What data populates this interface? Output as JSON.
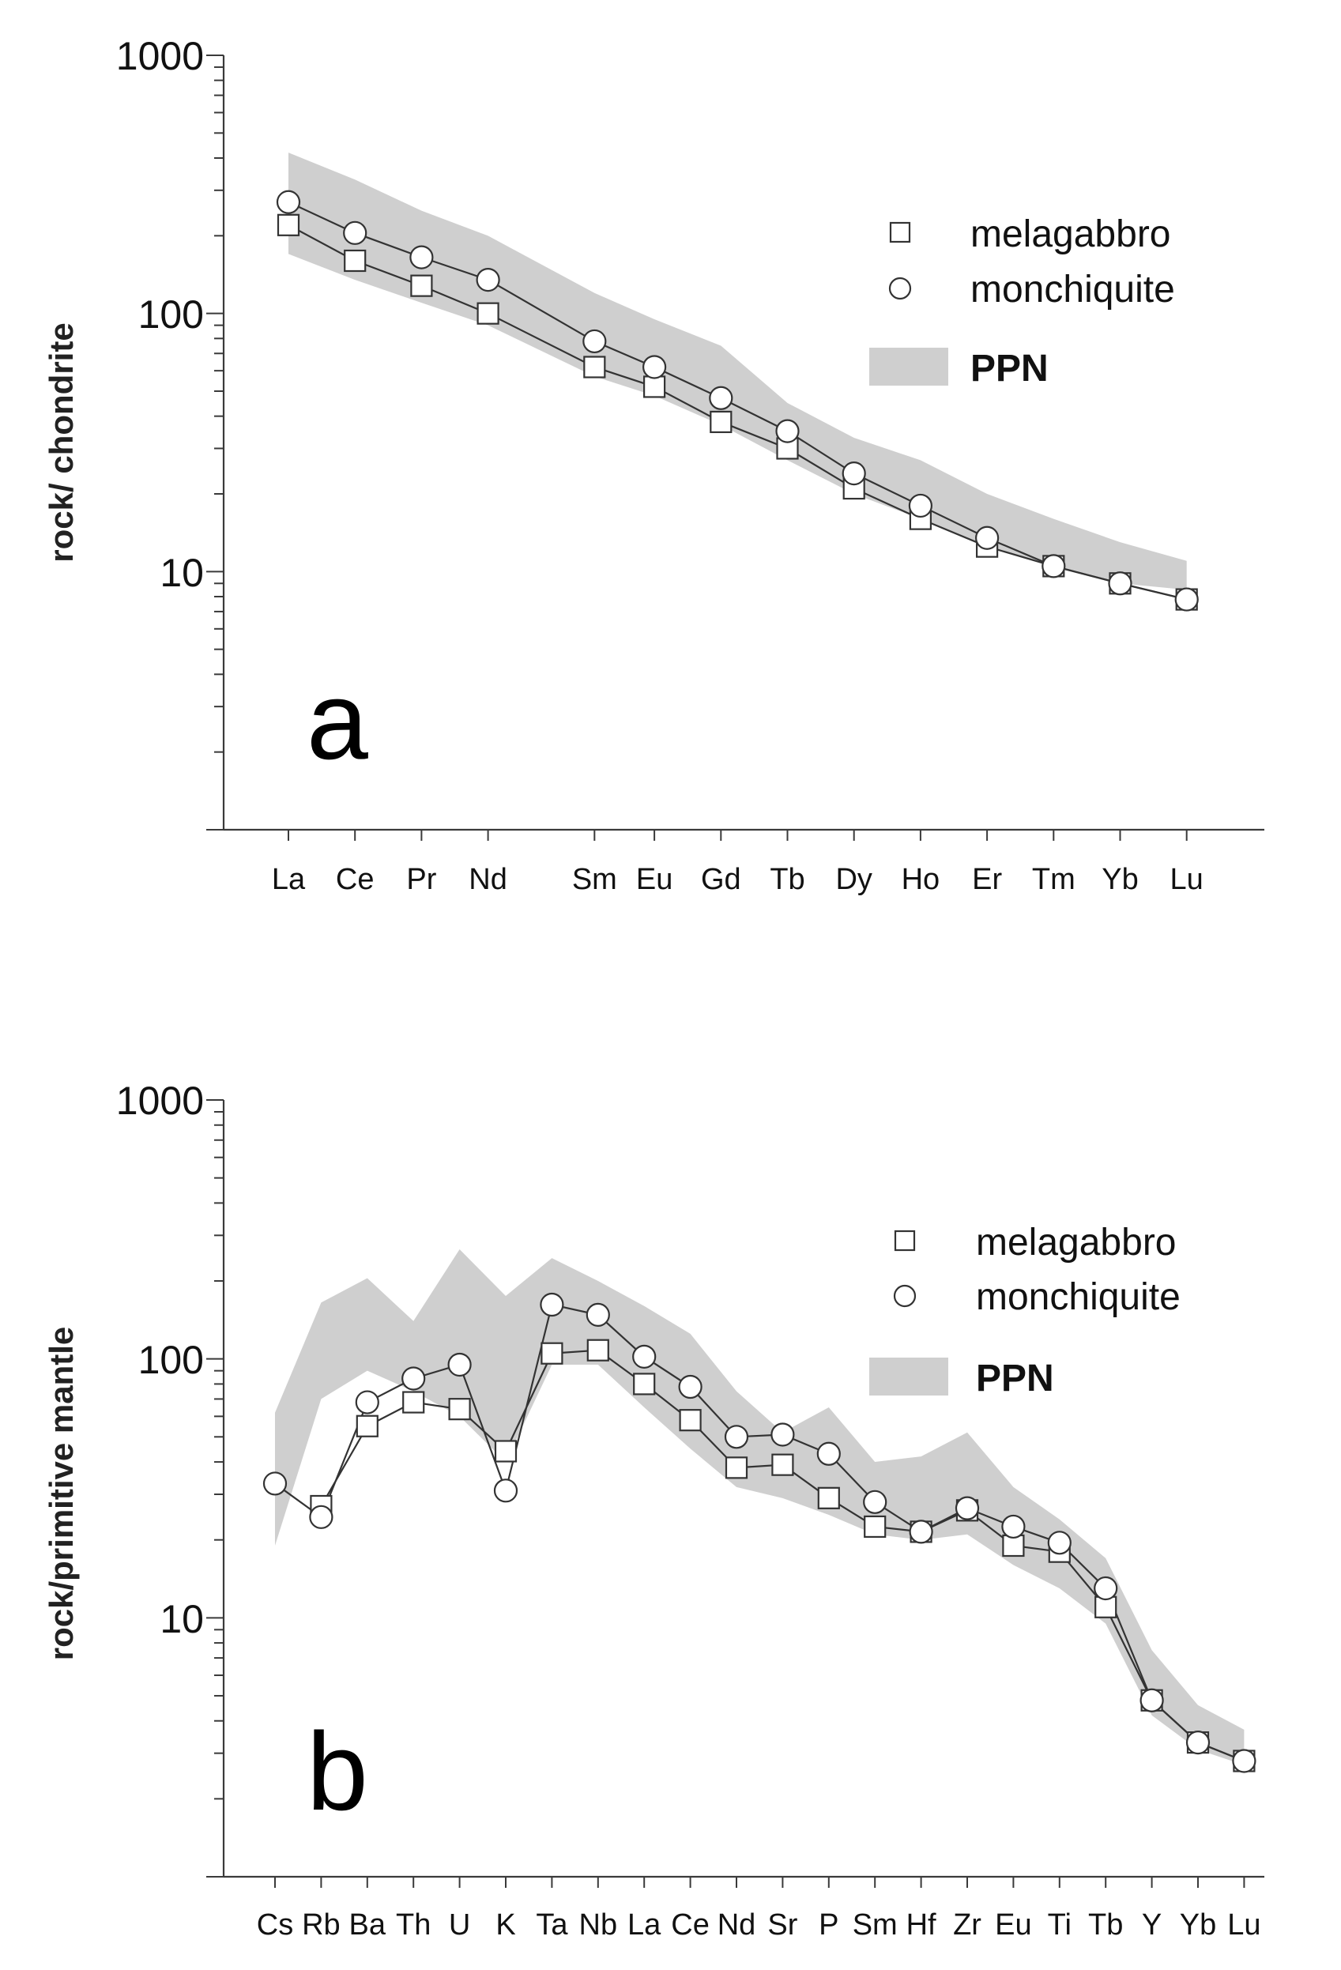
{
  "chart_data": [
    {
      "type": "line",
      "panel_letter": "a",
      "title": "",
      "xlabel": "",
      "ylabel": "rock/ chondrite",
      "yscale": "log",
      "ylim": [
        1,
        1000
      ],
      "y_tick_labels": [
        "1000",
        "100",
        "10"
      ],
      "y_tick_values": [
        1000,
        100,
        10
      ],
      "categories": [
        "La",
        "Ce",
        "Pr",
        "Nd",
        "Sm",
        "Eu",
        "Gd",
        "Tb",
        "Dy",
        "Ho",
        "Er",
        "Tm",
        "Yb",
        "Lu"
      ],
      "x_positions": [
        0,
        1,
        2,
        3,
        4.6,
        5.5,
        6.5,
        7.5,
        8.5,
        9.5,
        10.5,
        11.5,
        12.5,
        13.5
      ],
      "series": [
        {
          "name": "melagabbro",
          "marker": "square",
          "values": [
            220,
            160,
            128,
            100,
            62,
            52,
            38,
            30,
            21,
            16,
            12.5,
            10.5,
            9,
            7.8
          ]
        },
        {
          "name": "monchiquite",
          "marker": "circle",
          "values": [
            270,
            205,
            165,
            135,
            78,
            62,
            47,
            35,
            24,
            18,
            13.5,
            10.5,
            9,
            7.8
          ]
        }
      ],
      "band": {
        "name": "PPN",
        "upper": [
          420,
          330,
          250,
          200,
          120,
          95,
          75,
          45,
          33,
          27,
          20,
          16,
          13,
          11
        ],
        "lower": [
          170,
          135,
          110,
          90,
          57,
          48,
          37,
          27,
          20,
          16,
          12.5,
          10.5,
          9,
          8.5
        ]
      },
      "legend": {
        "position": "top-right",
        "entries": [
          "melagabbro",
          "monchiquite",
          "PPN"
        ]
      }
    },
    {
      "type": "line",
      "panel_letter": "b",
      "title": "",
      "xlabel": "",
      "ylabel": "rock/primitive mantle",
      "yscale": "log",
      "ylim": [
        1,
        1000
      ],
      "y_tick_labels": [
        "1000",
        "100",
        "10"
      ],
      "y_tick_values": [
        1000,
        100,
        10
      ],
      "categories": [
        "Cs",
        "Rb",
        "Ba",
        "Th",
        "U",
        "K",
        "Ta",
        "Nb",
        "La",
        "Ce",
        "Nd",
        "Sr",
        "P",
        "Sm",
        "Hf",
        "Zr",
        "Eu",
        "Ti",
        "Tb",
        "Y",
        "Yb",
        "Lu"
      ],
      "x_positions": [
        0,
        1,
        2,
        3,
        4,
        5,
        6,
        7,
        8,
        9,
        10,
        11,
        12,
        13,
        14,
        15,
        16,
        17,
        18,
        19,
        20,
        21
      ],
      "series": [
        {
          "name": "melagabbro",
          "marker": "square",
          "values": [
            null,
            27,
            55,
            68,
            64,
            44,
            105,
            108,
            80,
            58,
            38,
            39,
            29,
            22.5,
            21.5,
            26,
            19,
            18,
            11,
            4.8,
            3.3,
            2.8
          ]
        },
        {
          "name": "monchiquite",
          "marker": "circle",
          "values": [
            33,
            24.5,
            68,
            84,
            95,
            31,
            162,
            148,
            102,
            78,
            50,
            51,
            43,
            28,
            21.5,
            26.5,
            22.5,
            19.5,
            13,
            4.8,
            3.3,
            2.8
          ]
        }
      ],
      "band": {
        "name": "PPN",
        "upper": [
          62,
          165,
          205,
          140,
          265,
          175,
          245,
          200,
          160,
          125,
          75,
          52,
          65,
          40,
          42,
          52,
          32,
          24,
          17,
          7.5,
          4.6,
          3.7
        ],
        "lower": [
          19,
          70,
          90,
          75,
          60,
          40,
          95,
          95,
          65,
          45,
          32,
          29,
          25,
          21,
          20,
          21,
          16,
          13,
          9.5,
          4.2,
          3.1,
          2.7
        ]
      },
      "legend": {
        "position": "top-right",
        "entries": [
          "melagabbro",
          "monchiquite",
          "PPN"
        ]
      }
    }
  ]
}
